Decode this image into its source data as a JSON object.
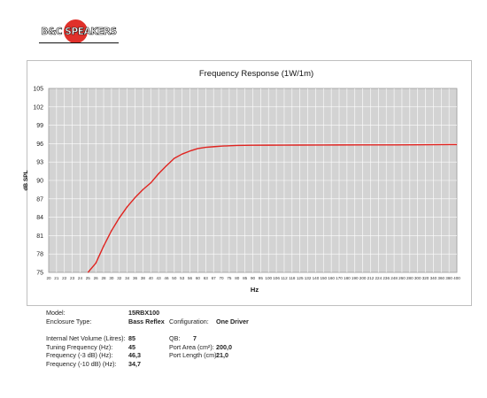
{
  "brand": {
    "logo_text": "B&C SPEAKERS"
  },
  "chart_data": {
    "type": "line",
    "title": "Frequency Response (1W/1m)",
    "xlabel": "Hz",
    "ylabel": "dB SPL",
    "ylim": [
      75,
      105
    ],
    "yticks": [
      "75",
      "78",
      "81",
      "84",
      "87",
      "90",
      "93",
      "96",
      "99",
      "102",
      "105"
    ],
    "xticks": [
      "20",
      "21",
      "22",
      "23",
      "24",
      "25",
      "26",
      "28",
      "30",
      "32",
      "34",
      "36",
      "38",
      "40",
      "43",
      "46",
      "50",
      "53",
      "56",
      "60",
      "63",
      "67",
      "70",
      "75",
      "80",
      "85",
      "90",
      "95",
      "100",
      "106",
      "112",
      "118",
      "125",
      "132",
      "140",
      "150",
      "160",
      "170",
      "180",
      "190",
      "200",
      "212",
      "224",
      "236",
      "248",
      "260",
      "280",
      "300",
      "320",
      "340",
      "360",
      "380",
      "400"
    ],
    "grid": true,
    "line_color": "#e0231f",
    "plot_bg": "#d3d3d3",
    "series": [
      {
        "x": [
          25,
          26,
          28,
          30,
          32,
          34,
          36,
          38,
          40,
          43,
          46,
          50,
          53,
          56,
          60,
          63,
          67,
          70,
          75,
          80,
          85,
          90,
          100,
          112,
          125,
          150,
          200,
          250,
          300,
          400
        ],
        "values": [
          75.0,
          76.5,
          79.3,
          81.8,
          83.9,
          85.7,
          87.2,
          88.5,
          89.6,
          91.1,
          92.4,
          93.6,
          94.3,
          94.8,
          95.2,
          95.4,
          95.5,
          95.6,
          95.65,
          95.7,
          95.72,
          95.74,
          95.75,
          95.76,
          95.77,
          95.78,
          95.8,
          95.8,
          95.82,
          95.85
        ]
      }
    ]
  },
  "specs": {
    "labels": [
      "Model:",
      "Enclosure Type:",
      "Internal Net Volume (Litres):",
      "Tuning Frequency (Hz):",
      "Frequency (-3 dB) (Hz):",
      "Frequency (-10 dB) (Hz):"
    ],
    "values": [
      "15RBX100",
      "Bass Reflex",
      "85",
      "45",
      "46,3",
      "34,7"
    ],
    "config_label": "Configuration:",
    "config_value": "One Driver",
    "right_labels": [
      "QB:",
      "Port Area (cm²):",
      "Port Length (cm):"
    ],
    "right_values": [
      "7",
      "200,0",
      "21,0"
    ]
  }
}
